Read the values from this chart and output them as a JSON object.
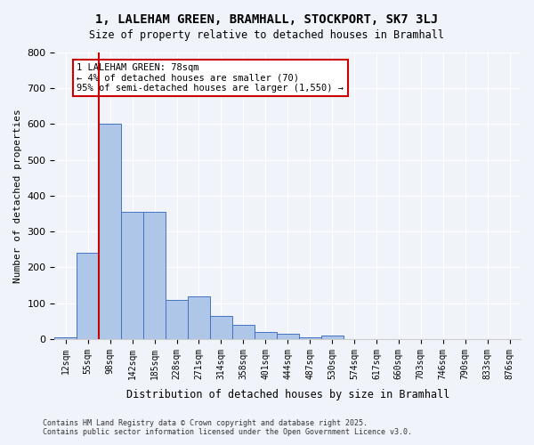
{
  "title_line1": "1, LALEHAM GREEN, BRAMHALL, STOCKPORT, SK7 3LJ",
  "title_line2": "Size of property relative to detached houses in Bramhall",
  "xlabel": "Distribution of detached houses by size in Bramhall",
  "ylabel": "Number of detached properties",
  "categories": [
    "12sqm",
    "55sqm",
    "98sqm",
    "142sqm",
    "185sqm",
    "228sqm",
    "271sqm",
    "314sqm",
    "358sqm",
    "401sqm",
    "444sqm",
    "487sqm",
    "530sqm",
    "574sqm",
    "617sqm",
    "660sqm",
    "703sqm",
    "746sqm",
    "790sqm",
    "833sqm",
    "876sqm"
  ],
  "values": [
    5,
    240,
    600,
    355,
    355,
    110,
    120,
    65,
    40,
    20,
    15,
    5,
    10,
    0,
    0,
    0,
    0,
    0,
    0,
    0,
    0
  ],
  "bar_color": "#aec6e8",
  "bar_edge_color": "#4472c4",
  "property_line_x": 1.5,
  "property_sqm": 78,
  "annotation_text": "1 LALEHAM GREEN: 78sqm\n← 4% of detached houses are smaller (70)\n95% of semi-detached houses are larger (1,550) →",
  "annotation_box_color": "#ffffff",
  "annotation_box_edge_color": "#cc0000",
  "property_line_color": "#cc0000",
  "ylim": [
    0,
    800
  ],
  "yticks": [
    0,
    100,
    200,
    300,
    400,
    500,
    600,
    700,
    800
  ],
  "footer_line1": "Contains HM Land Registry data © Crown copyright and database right 2025.",
  "footer_line2": "Contains public sector information licensed under the Open Government Licence v3.0.",
  "bg_color": "#f0f4fa",
  "plot_bg_color": "#f0f4fa"
}
